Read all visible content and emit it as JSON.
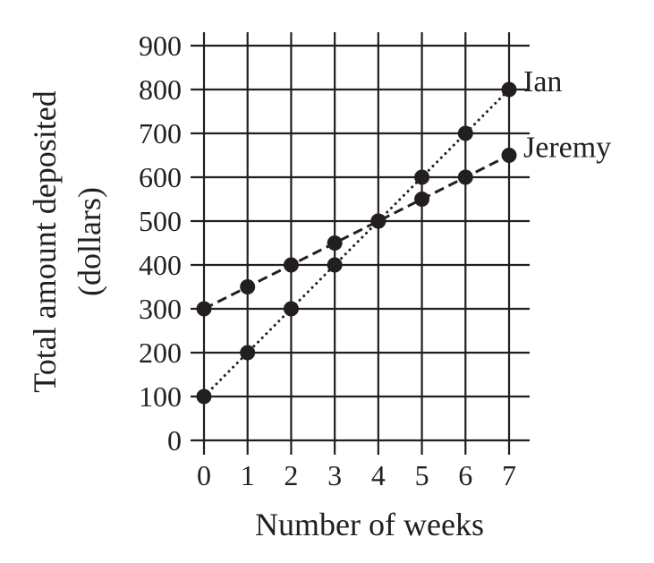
{
  "chart_data": {
    "type": "line",
    "xlabel": "Number of weeks",
    "ylabel_lines": [
      "Total amount deposited",
      "(dollars)"
    ],
    "x_ticks": [
      "0",
      "1",
      "2",
      "3",
      "4",
      "5",
      "6",
      "7"
    ],
    "y_ticks": [
      "0",
      "100",
      "200",
      "300",
      "400",
      "500",
      "600",
      "700",
      "800",
      "900"
    ],
    "xlim": [
      0,
      7
    ],
    "ylim": [
      0,
      900
    ],
    "grid": true,
    "x": [
      0,
      1,
      2,
      3,
      4,
      5,
      6,
      7
    ],
    "series": [
      {
        "name": "Jeremy",
        "line_style": "dashed",
        "values": [
          300,
          350,
          400,
          450,
          500,
          550,
          600,
          650
        ]
      },
      {
        "name": "Ian",
        "line_style": "dotted",
        "values": [
          100,
          200,
          300,
          400,
          500,
          600,
          700,
          800
        ]
      }
    ],
    "colors": {
      "ink": "#231f20"
    }
  }
}
